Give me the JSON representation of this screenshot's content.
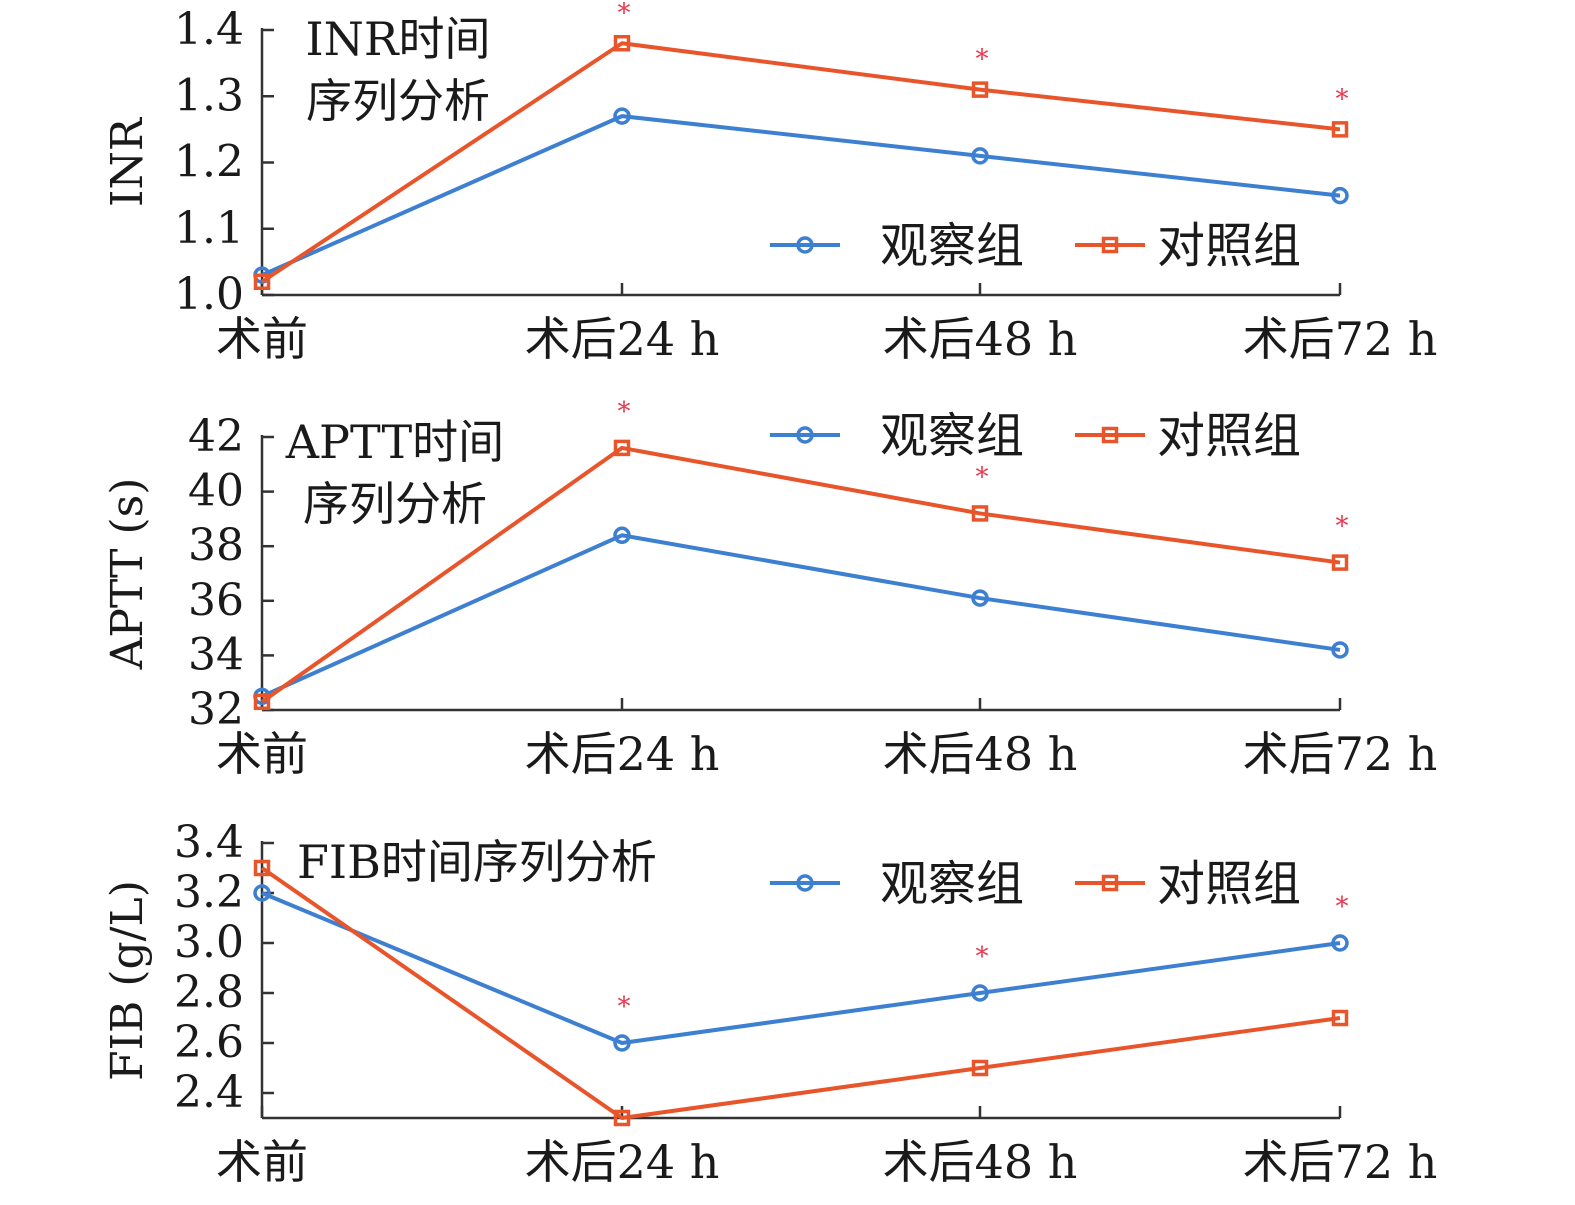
{
  "colors": {
    "observation": "#3d7fd1",
    "control": "#e8552b",
    "axis": "#333333",
    "star": "#e8384f"
  },
  "legend": {
    "observation": "观察组",
    "control": "对照组"
  },
  "chart_data": [
    {
      "type": "line",
      "title": [
        "INR时间",
        "序列分析"
      ],
      "xlabel": "",
      "ylabel": "INR",
      "categories": [
        "术前",
        "术后24 h",
        "术后48 h",
        "术后72 h"
      ],
      "ylim": [
        1.0,
        1.4
      ],
      "yticks": [
        "1.0",
        "1.1",
        "1.2",
        "1.3",
        "1.4"
      ],
      "series": [
        {
          "name": "观察组",
          "marker": "circle",
          "values": [
            1.03,
            1.27,
            1.21,
            1.15
          ]
        },
        {
          "name": "对照组",
          "marker": "square",
          "values": [
            1.02,
            1.38,
            1.31,
            1.25
          ]
        }
      ],
      "significance": [
        "",
        "*",
        "*",
        "*"
      ],
      "legend_position": "bottom-right",
      "grid": false
    },
    {
      "type": "line",
      "title": [
        "APTT时间",
        "序列分析"
      ],
      "xlabel": "",
      "ylabel": "APTT (s)",
      "categories": [
        "术前",
        "术后24 h",
        "术后48 h",
        "术后72 h"
      ],
      "ylim": [
        32,
        42
      ],
      "yticks": [
        "32",
        "34",
        "36",
        "38",
        "40",
        "42"
      ],
      "series": [
        {
          "name": "观察组",
          "marker": "circle",
          "values": [
            32.5,
            38.4,
            36.1,
            34.2
          ]
        },
        {
          "name": "对照组",
          "marker": "square",
          "values": [
            32.3,
            41.6,
            39.2,
            37.4
          ]
        }
      ],
      "significance": [
        "",
        "*",
        "*",
        "*"
      ],
      "legend_position": "top-right",
      "grid": false
    },
    {
      "type": "line",
      "title": [
        "FIB时间序列分析"
      ],
      "xlabel": "",
      "ylabel": "FIB (g/L)",
      "categories": [
        "术前",
        "术后24 h",
        "术后48 h",
        "术后72 h"
      ],
      "ylim": [
        2.3,
        3.4
      ],
      "yticks": [
        "2.4",
        "2.6",
        "2.8",
        "3.0",
        "3.2",
        "3.4"
      ],
      "series": [
        {
          "name": "观察组",
          "marker": "circle",
          "values": [
            3.2,
            2.6,
            2.8,
            3.0
          ]
        },
        {
          "name": "对照组",
          "marker": "square",
          "values": [
            3.3,
            2.3,
            2.5,
            2.7
          ]
        }
      ],
      "significance": [
        "",
        "*",
        "*",
        "*"
      ],
      "legend_position": "top-right",
      "grid": false
    }
  ]
}
